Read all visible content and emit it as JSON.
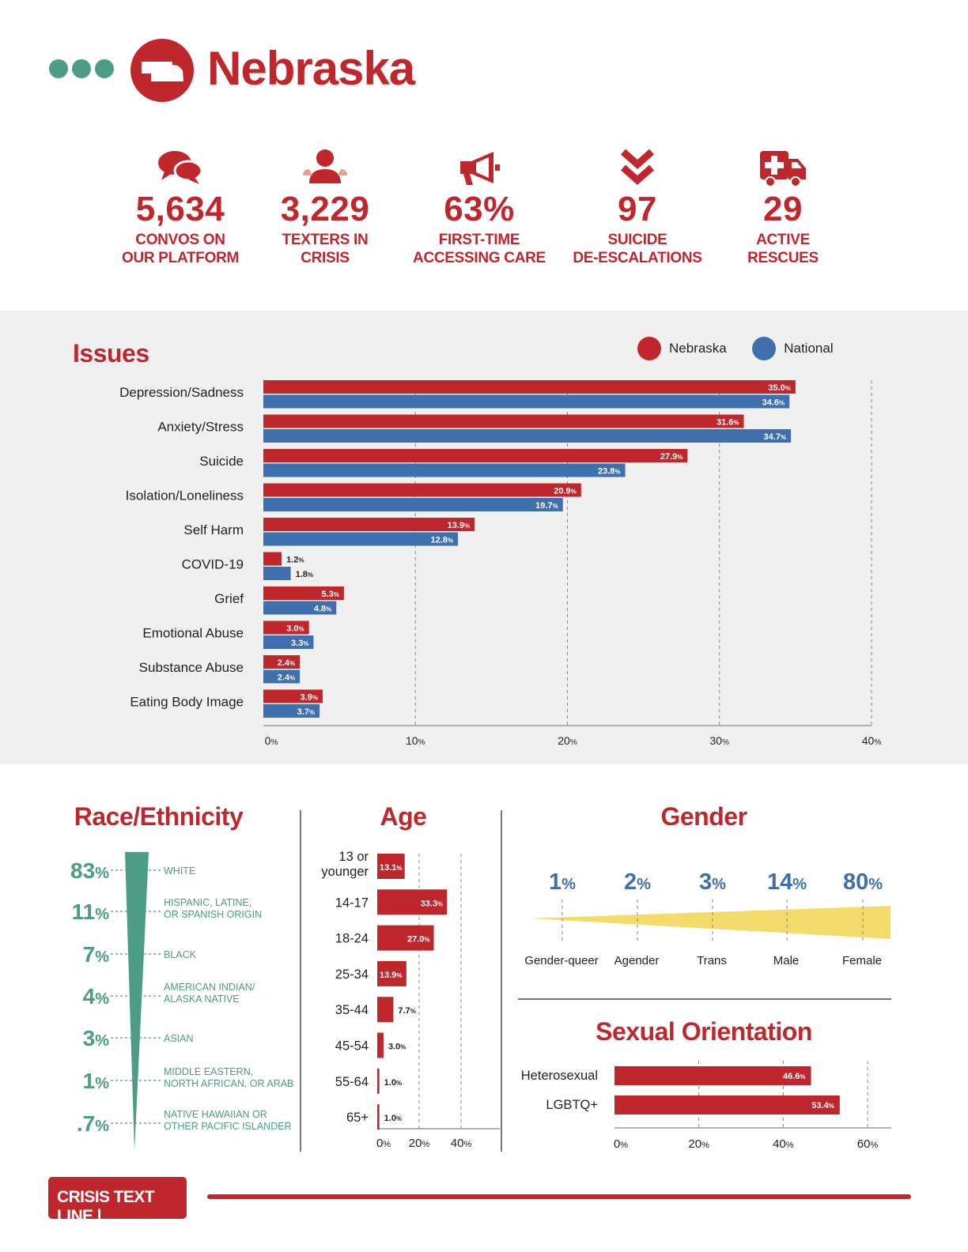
{
  "header": {
    "title": "Nebraska",
    "logo_icon": "nebraska-state-icon",
    "dots_icon": "three-dots-icon"
  },
  "stats": [
    {
      "icon": "speech-bubbles-icon",
      "value": "5,634",
      "label_line1": "CONVOS ON",
      "label_line2": "OUR PLATFORM"
    },
    {
      "icon": "person-icon",
      "value": "3,229",
      "label_line1": "TEXTERS IN",
      "label_line2": "CRISIS"
    },
    {
      "icon": "megaphone-icon",
      "value": "63%",
      "label_line1": "FIRST-TIME",
      "label_line2": "ACCESSING CARE"
    },
    {
      "icon": "double-chevron-down-icon",
      "value": "97",
      "label_line1": "SUICIDE",
      "label_line2": "DE-ESCALATIONS"
    },
    {
      "icon": "ambulance-icon",
      "value": "29",
      "label_line1": "ACTIVE",
      "label_line2": "RESCUES"
    }
  ],
  "colors": {
    "red": "#c0272d",
    "blue": "#3f6fae",
    "green": "#4d9c85",
    "yellow": "#f3dc6b",
    "gray_panel": "#f0f0f0"
  },
  "issues": {
    "title": "Issues",
    "legend": [
      "Nebraska",
      "National"
    ]
  },
  "race": {
    "title": "Race/Ethnicity",
    "items": [
      {
        "pct": "83",
        "unit": "%",
        "label_line1": "WHITE",
        "label_line2": ""
      },
      {
        "pct": "11",
        "unit": "%",
        "label_line1": "HISPANIC, LATINE,",
        "label_line2": "OR SPANISH ORIGIN"
      },
      {
        "pct": "7",
        "unit": "%",
        "label_line1": "BLACK",
        "label_line2": ""
      },
      {
        "pct": "4",
        "unit": "%",
        "label_line1": "AMERICAN INDIAN/",
        "label_line2": "ALASKA NATIVE"
      },
      {
        "pct": "3",
        "unit": "%",
        "label_line1": "ASIAN",
        "label_line2": ""
      },
      {
        "pct": "1",
        "unit": "%",
        "label_line1": "MIDDLE EASTERN,",
        "label_line2": "NORTH AFRICAN, OR ARAB"
      },
      {
        "pct": ".7",
        "unit": "%",
        "label_line1": "NATIVE HAWAIIAN OR",
        "label_line2": "OTHER PACIFIC ISLANDER"
      }
    ]
  },
  "age": {
    "title": "Age"
  },
  "gender": {
    "title": "Gender",
    "items": [
      {
        "pct": "1",
        "unit": "%",
        "label": "Gender-queer"
      },
      {
        "pct": "2",
        "unit": "%",
        "label": "Agender"
      },
      {
        "pct": "3",
        "unit": "%",
        "label": "Trans"
      },
      {
        "pct": "14",
        "unit": "%",
        "label": "Male"
      },
      {
        "pct": "80",
        "unit": "%",
        "label": "Female"
      }
    ]
  },
  "orientation": {
    "title": "Sexual Orientation"
  },
  "footer": {
    "logo_text": "CRISIS TEXT LINE |"
  },
  "chart_data": [
    {
      "type": "bar",
      "orientation": "horizontal",
      "title": "Issues",
      "categories": [
        "Depression/Sadness",
        "Anxiety/Stress",
        "Suicide",
        "Isolation/Loneliness",
        "Self Harm",
        "COVID-19",
        "Grief",
        "Emotional Abuse",
        "Substance Abuse",
        "Eating Body Image"
      ],
      "series": [
        {
          "name": "Nebraska",
          "color": "#c0272d",
          "values": [
            35.0,
            31.6,
            27.9,
            20.9,
            13.9,
            1.2,
            5.3,
            3.0,
            2.4,
            3.9
          ]
        },
        {
          "name": "National",
          "color": "#3f6fae",
          "values": [
            34.6,
            34.7,
            23.8,
            19.7,
            12.8,
            1.8,
            4.8,
            3.3,
            2.4,
            3.7
          ]
        }
      ],
      "xlim": [
        0,
        40
      ],
      "xticks": [
        0,
        10,
        20,
        30,
        40
      ],
      "tick_unit": "%",
      "grid": true,
      "legend": "top-right"
    },
    {
      "type": "bar",
      "orientation": "horizontal",
      "title": "Age",
      "categories": [
        "13 or younger",
        "14-17",
        "18-24",
        "25-34",
        "35-44",
        "45-54",
        "55-64",
        "65+"
      ],
      "values": [
        13.1,
        33.3,
        27.0,
        13.9,
        7.7,
        3.0,
        1.0,
        1.0
      ],
      "xlim": [
        0,
        50
      ],
      "xticks": [
        0,
        20,
        40
      ],
      "tick_unit": "%",
      "grid": true
    },
    {
      "type": "bar",
      "orientation": "horizontal",
      "title": "Sexual Orientation",
      "categories": [
        "Heterosexual",
        "LGBTQ+"
      ],
      "values": [
        46.6,
        53.4
      ],
      "xlim": [
        0,
        60
      ],
      "xticks": [
        0,
        20,
        40,
        60
      ],
      "tick_unit": "%",
      "grid": true
    }
  ]
}
